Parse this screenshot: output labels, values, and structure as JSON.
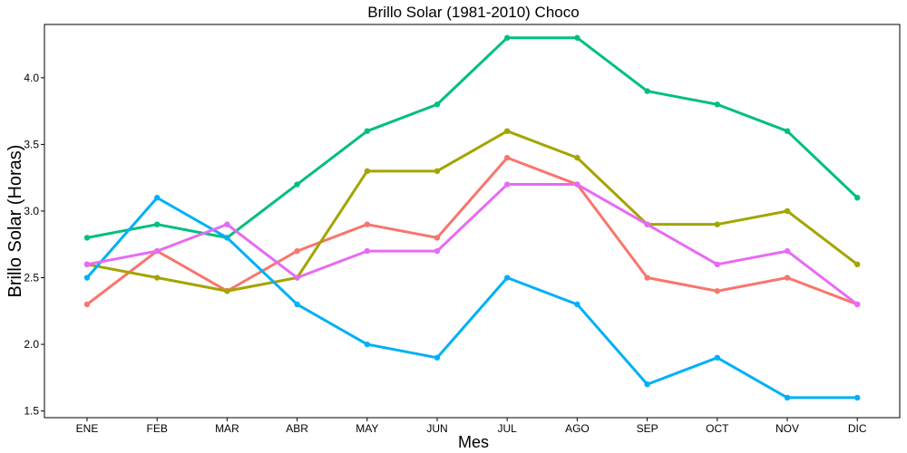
{
  "chart_data": {
    "type": "line",
    "title": "Brillo Solar (1981-2010)  Choco",
    "xlabel": "Mes",
    "ylabel": "Brillo Solar (Horas)",
    "categories": [
      "ENE",
      "FEB",
      "MAR",
      "ABR",
      "MAY",
      "JUN",
      "JUL",
      "AGO",
      "SEP",
      "OCT",
      "NOV",
      "DIC"
    ],
    "ylim": [
      1.45,
      4.4
    ],
    "yticks": [
      1.5,
      2.0,
      2.5,
      3.0,
      3.5,
      4.0
    ],
    "ytick_labels": [
      "1.5",
      "2.0",
      "2.5",
      "3.0",
      "3.5",
      "4.0"
    ],
    "grid": false,
    "legend": "none",
    "series": [
      {
        "color": "#F8766D",
        "values": [
          2.3,
          2.7,
          2.4,
          2.7,
          2.9,
          2.8,
          3.4,
          3.2,
          2.5,
          2.4,
          2.5,
          2.3
        ]
      },
      {
        "color": "#A3A500",
        "values": [
          2.6,
          2.5,
          2.4,
          2.5,
          3.3,
          3.3,
          3.6,
          3.4,
          2.9,
          2.9,
          3.0,
          2.6
        ]
      },
      {
        "color": "#00BF7D",
        "values": [
          2.8,
          2.9,
          2.8,
          3.2,
          3.6,
          3.8,
          4.3,
          4.3,
          3.9,
          3.8,
          3.6,
          3.1
        ]
      },
      {
        "color": "#00B0F6",
        "values": [
          2.5,
          3.1,
          2.8,
          2.3,
          2.0,
          1.9,
          2.5,
          2.3,
          1.7,
          1.9,
          1.6,
          1.6
        ]
      },
      {
        "color": "#E76BF3",
        "values": [
          2.6,
          2.7,
          2.9,
          2.5,
          2.7,
          2.7,
          3.2,
          3.2,
          2.9,
          2.6,
          2.7,
          2.3
        ]
      }
    ]
  }
}
